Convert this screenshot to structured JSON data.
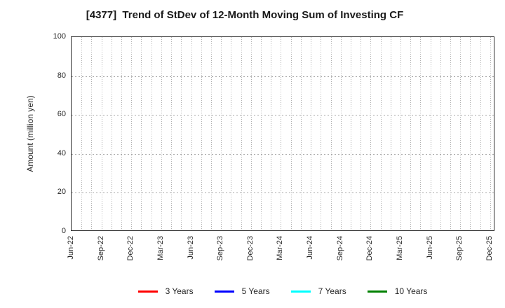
{
  "chart_data": {
    "type": "line",
    "title": "[4377]  Trend of StDev of 12-Month Moving Sum of Investing CF",
    "ylabel": "Amount (million yen)",
    "xlabel": "",
    "ylim": [
      0,
      100
    ],
    "yticks": [
      0,
      20,
      40,
      60,
      80,
      100
    ],
    "x_tick_labels": [
      "Jun-22",
      "Sep-22",
      "Dec-22",
      "Mar-23",
      "Jun-23",
      "Sep-23",
      "Dec-23",
      "Mar-24",
      "Jun-24",
      "Sep-24",
      "Dec-24",
      "Mar-25",
      "Jun-25",
      "Sep-25",
      "Dec-25"
    ],
    "x_months_total": 43,
    "x_label_step_months": 3,
    "grid": "on-dotted",
    "legend_position": "bottom-center",
    "series": [
      {
        "name": "3 Years",
        "color": "#ff0000",
        "values": []
      },
      {
        "name": "5 Years",
        "color": "#0000ff",
        "values": []
      },
      {
        "name": "7 Years",
        "color": "#00ffff",
        "values": []
      },
      {
        "name": "10 Years",
        "color": "#008000",
        "values": []
      }
    ]
  }
}
